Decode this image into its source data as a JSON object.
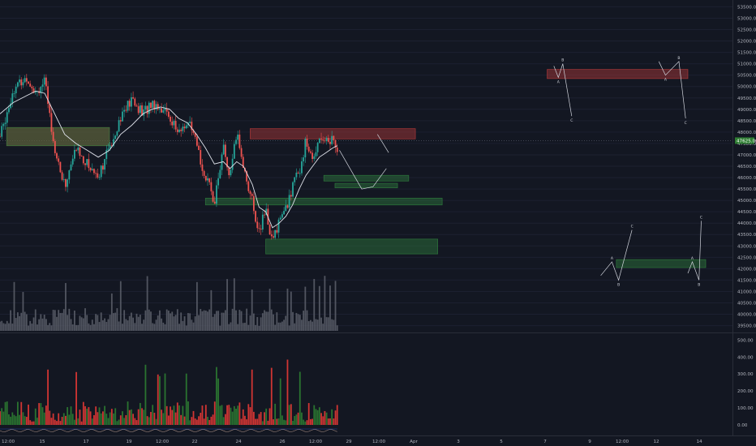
{
  "chart_data": {
    "type": "candlestick",
    "price_axis": {
      "ticks": [
        "53500.00",
        "53000.00",
        "52500.00",
        "52000.00",
        "51500.00",
        "51000.00",
        "50500.00",
        "50000.00",
        "49500.00",
        "49000.00",
        "48500.00",
        "48000.00",
        "47500.00",
        "47000.00",
        "46500.00",
        "46000.00",
        "45500.00",
        "45000.00",
        "44500.00",
        "44000.00",
        "43500.00",
        "43000.00",
        "42500.00",
        "42000.00",
        "41500.00",
        "41000.00",
        "40500.00",
        "40000.00",
        "39500.00"
      ],
      "range": [
        39200,
        53800
      ],
      "current_price_label": "47625.00"
    },
    "indicator_axis": {
      "ticks": [
        "500.00",
        "400.00",
        "300.00",
        "200.00",
        "100.00",
        "0.00"
      ],
      "range": [
        0,
        540
      ]
    },
    "time_axis": {
      "labels": [
        "12:00",
        "15",
        "17",
        "19",
        "12:00",
        "22",
        "24",
        "26",
        "12:00",
        "29",
        "12:00",
        "Apr",
        "3",
        "5",
        "7",
        "9",
        "12:00",
        "12",
        "14"
      ],
      "range_days": [
        13.0,
        44.6
      ]
    },
    "series_summary": {
      "price_path_days": [
        13.0,
        13.6,
        14.2,
        14.6,
        15.0,
        15.5,
        15.9,
        16.4,
        16.9,
        17.4,
        17.9,
        18.4,
        18.9,
        19.4,
        19.8,
        20.2,
        20.6,
        21.0,
        21.4,
        21.8,
        22.2,
        22.6,
        23.0,
        23.3,
        23.6,
        23.9,
        24.3,
        24.6,
        24.9,
        25.2,
        25.5,
        25.8,
        26.1,
        26.4,
        26.7,
        27.0,
        27.3,
        27.6,
        27.9,
        28.1
      ],
      "price_path_values": [
        47800,
        49900,
        50400,
        49800,
        50200,
        47000,
        45600,
        47300,
        46600,
        46100,
        47300,
        48700,
        49400,
        48800,
        49300,
        49100,
        48700,
        47900,
        48500,
        47400,
        46000,
        45000,
        47300,
        45900,
        48000,
        46500,
        44900,
        43600,
        44600,
        43100,
        44200,
        44600,
        45600,
        46300,
        47600,
        46700,
        47900,
        47600,
        47700,
        47300
      ],
      "sma_path_values": [
        48800,
        49300,
        49600,
        49800,
        49700,
        48700,
        47900,
        47500,
        47200,
        46900,
        47200,
        47900,
        48300,
        48800,
        49000,
        49100,
        49000,
        48600,
        48400,
        47900,
        47300,
        46600,
        46700,
        46400,
        46700,
        46500,
        45700,
        44700,
        44500,
        43800,
        44000,
        44300,
        44800,
        45500,
        46100,
        46500,
        46900,
        47100,
        47300,
        47400
      ]
    },
    "zones": [
      {
        "kind": "resistance",
        "color": "#b33a3a",
        "from_day": 13.3,
        "to_day": 17.9,
        "low": 47400,
        "high": 48200
      },
      {
        "kind": "resistance",
        "color": "#b33a3a",
        "from_day": 24.2,
        "to_day": 31.6,
        "low": 47700,
        "high": 48150
      },
      {
        "kind": "resistance",
        "color": "#b33a3a",
        "from_day": 37.5,
        "to_day": 43.8,
        "low": 50350,
        "high": 50750
      },
      {
        "kind": "support",
        "color": "#2f7d3d",
        "from_day": 13.3,
        "to_day": 17.9,
        "low": 47400,
        "high": 48200
      },
      {
        "kind": "support",
        "color": "#2f7d3d",
        "from_day": 27.5,
        "to_day": 31.3,
        "low": 45850,
        "high": 46100
      },
      {
        "kind": "support",
        "color": "#2f7d3d",
        "from_day": 28.0,
        "to_day": 30.8,
        "low": 45550,
        "high": 45750
      },
      {
        "kind": "support",
        "color": "#2f7d3d",
        "from_day": 22.2,
        "to_day": 32.8,
        "low": 44800,
        "high": 45100
      },
      {
        "kind": "support",
        "color": "#2f7d3d",
        "from_day": 24.9,
        "to_day": 32.6,
        "low": 42650,
        "high": 43300
      },
      {
        "kind": "support",
        "color": "#2f7d3d",
        "from_day": 40.6,
        "to_day": 44.6,
        "low": 42050,
        "high": 42400
      }
    ],
    "annotations": {
      "projection_down": [
        [
          28.2,
          47200
        ],
        [
          29.2,
          45500
        ],
        [
          29.7,
          45600
        ],
        [
          30.3,
          46400
        ]
      ],
      "projection_arrow": [
        [
          29.9,
          47900
        ],
        [
          30.4,
          47100
        ]
      ],
      "wave_top_left": [
        {
          "day": 38.0,
          "v": 50400,
          "label": "A"
        },
        {
          "day": 38.2,
          "v": 51000,
          "label": "B"
        },
        {
          "day": 38.6,
          "v": 48700,
          "label": "C"
        }
      ],
      "wave_top_left_start": [
        37.8,
        50900
      ],
      "wave_top_right": [
        {
          "day": 42.8,
          "v": 50500,
          "label": "A"
        },
        {
          "day": 43.4,
          "v": 51100,
          "label": "B"
        },
        {
          "day": 43.7,
          "v": 48600,
          "label": "C"
        }
      ],
      "wave_top_right_start": [
        42.5,
        51100
      ],
      "wave_bottom_left": [
        {
          "day": 40.4,
          "v": 42300,
          "label": "A"
        },
        {
          "day": 40.7,
          "v": 41500,
          "label": "B"
        },
        {
          "day": 41.3,
          "v": 43700,
          "label": "C"
        }
      ],
      "wave_bottom_left_start": [
        39.9,
        41700
      ],
      "wave_bottom_right": [
        {
          "day": 44.0,
          "v": 42300,
          "label": "A"
        },
        {
          "day": 44.3,
          "v": 41500,
          "label": "B"
        },
        {
          "day": 44.4,
          "v": 44100,
          "label": "C"
        }
      ],
      "wave_bottom_right_start": [
        43.8,
        41800
      ]
    },
    "legend": "none",
    "grid": true
  }
}
